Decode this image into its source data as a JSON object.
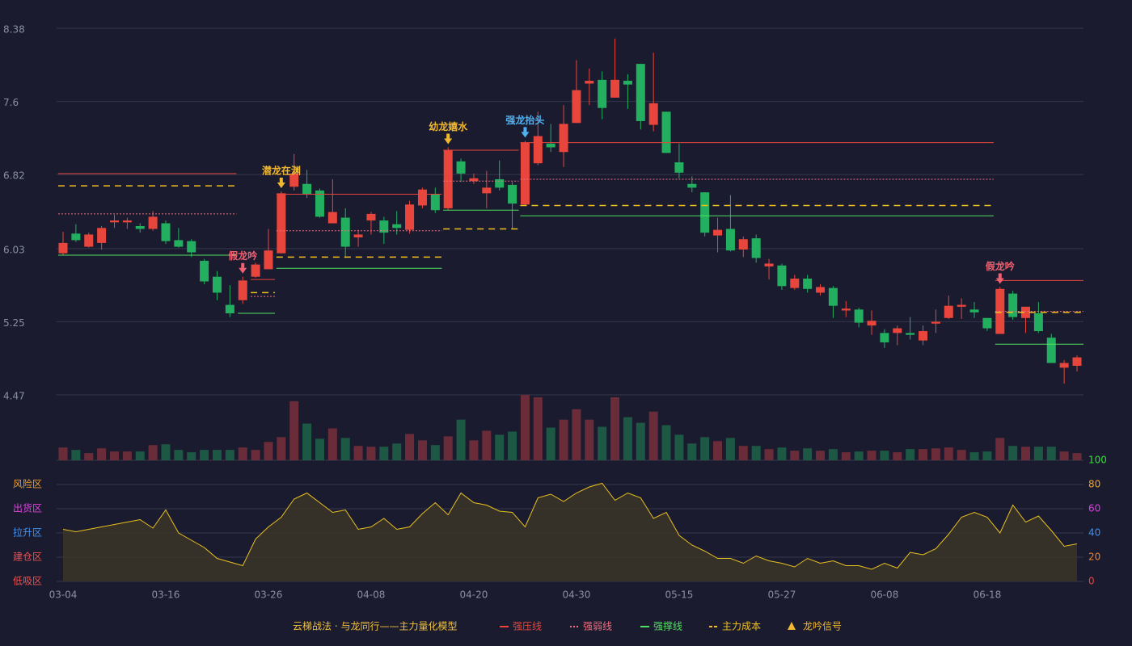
{
  "chart_data": [
    {
      "type": "candlestick",
      "categories": [
        "03-04",
        null,
        null,
        null,
        null,
        null,
        null,
        null,
        "03-16",
        null,
        null,
        null,
        null,
        null,
        null,
        null,
        "03-26",
        null,
        null,
        null,
        null,
        null,
        null,
        null,
        "04-08",
        null,
        null,
        null,
        null,
        null,
        null,
        null,
        "04-20",
        null,
        null,
        null,
        null,
        null,
        null,
        null,
        "04-30",
        null,
        null,
        null,
        null,
        null,
        null,
        null,
        "05-15",
        null,
        null,
        null,
        null,
        null,
        null,
        null,
        "05-27",
        null,
        null,
        null,
        null,
        null,
        null,
        null,
        "06-08",
        null,
        null,
        null,
        null,
        null,
        null,
        null,
        "06-18",
        null,
        null,
        null,
        null,
        null,
        null,
        null
      ],
      "open": [
        5.98,
        6.19,
        6.05,
        6.09,
        6.31,
        6.31,
        6.27,
        6.24,
        6.3,
        6.12,
        6.11,
        5.9,
        5.73,
        5.43,
        5.48,
        5.73,
        5.81,
        5.98,
        6.69,
        6.72,
        6.65,
        6.3,
        6.36,
        6.15,
        6.33,
        6.33,
        6.29,
        6.23,
        6.49,
        6.61,
        6.46,
        6.96,
        6.75,
        6.62,
        6.77,
        6.71,
        6.5,
        6.94,
        7.15,
        7.06,
        7.37,
        7.79,
        7.83,
        7.64,
        7.82,
        8.0,
        7.35,
        7.49,
        6.95,
        6.72,
        6.63,
        6.17,
        6.24,
        6.02,
        6.14,
        5.84,
        5.85,
        5.61,
        5.71,
        5.56,
        5.61,
        5.37,
        5.38,
        5.21,
        5.13,
        5.13,
        5.13,
        5.05,
        5.23,
        5.29,
        5.41,
        5.38,
        5.29,
        5.12,
        5.55,
        5.29,
        5.34,
        5.08,
        4.76,
        4.78
      ],
      "high": [
        6.21,
        6.29,
        6.2,
        6.27,
        6.39,
        6.36,
        6.3,
        6.43,
        6.33,
        6.25,
        6.13,
        5.92,
        5.79,
        5.64,
        5.73,
        5.88,
        6.24,
        6.64,
        7.04,
        6.87,
        6.67,
        6.77,
        6.46,
        6.23,
        6.42,
        6.37,
        6.43,
        6.54,
        6.68,
        6.68,
        7.11,
        6.99,
        6.83,
        6.86,
        6.97,
        6.74,
        7.18,
        7.49,
        7.36,
        7.56,
        8.04,
        7.95,
        7.92,
        8.27,
        7.89,
        8.0,
        8.12,
        7.49,
        7.15,
        6.8,
        6.63,
        6.36,
        6.6,
        6.16,
        6.18,
        5.92,
        5.87,
        5.75,
        5.75,
        5.65,
        5.63,
        5.47,
        5.4,
        5.37,
        5.17,
        5.21,
        5.3,
        5.21,
        5.38,
        5.53,
        5.5,
        5.46,
        5.29,
        5.62,
        5.58,
        5.41,
        5.46,
        5.12,
        4.84,
        4.89
      ],
      "low": [
        5.96,
        6.1,
        6.04,
        6.02,
        6.25,
        6.24,
        6.2,
        6.22,
        6.08,
        6.04,
        5.94,
        5.65,
        5.48,
        5.3,
        5.44,
        5.72,
        5.81,
        5.98,
        6.65,
        6.57,
        6.36,
        6.3,
        5.93,
        6.05,
        6.18,
        6.08,
        6.18,
        6.19,
        6.46,
        6.41,
        6.44,
        6.74,
        6.72,
        6.46,
        6.65,
        6.24,
        6.49,
        6.92,
        7.06,
        6.9,
        7.37,
        7.56,
        7.41,
        7.64,
        7.52,
        7.3,
        7.28,
        7.05,
        6.78,
        6.63,
        6.16,
        5.99,
        6.0,
        5.94,
        5.88,
        5.7,
        5.59,
        5.59,
        5.56,
        5.53,
        5.29,
        5.3,
        5.19,
        5.11,
        4.97,
        5.0,
        5.06,
        5.0,
        5.13,
        5.28,
        5.28,
        5.29,
        5.15,
        5.12,
        5.27,
        5.13,
        5.13,
        4.81,
        4.59,
        4.72
      ],
      "close": [
        6.09,
        6.12,
        6.18,
        6.25,
        6.33,
        6.33,
        6.24,
        6.37,
        6.11,
        6.05,
        5.99,
        5.68,
        5.56,
        5.34,
        5.69,
        5.86,
        6.01,
        6.62,
        6.83,
        6.61,
        6.37,
        6.42,
        6.05,
        6.18,
        6.4,
        6.2,
        6.25,
        6.5,
        6.66,
        6.44,
        7.08,
        6.83,
        6.78,
        6.68,
        6.68,
        6.51,
        7.16,
        7.23,
        7.11,
        7.36,
        7.72,
        7.82,
        7.53,
        7.83,
        7.78,
        7.39,
        7.58,
        7.05,
        6.84,
        6.68,
        6.2,
        6.23,
        6.01,
        6.13,
        5.93,
        5.87,
        5.63,
        5.71,
        5.6,
        5.62,
        5.42,
        5.39,
        5.24,
        5.26,
        5.03,
        5.18,
        5.11,
        5.15,
        5.25,
        5.42,
        5.43,
        5.35,
        5.18,
        5.6,
        5.3,
        5.41,
        5.15,
        4.81,
        4.81,
        4.87
      ],
      "up_color": "#e8463c",
      "down_color": "#22b060",
      "ylim": [
        4.47,
        8.38
      ],
      "yticks": [
        4.47,
        5.25,
        6.03,
        6.82,
        7.6,
        {
          "value": 8.38,
          "label": "8.38"
        }
      ],
      "grid": true,
      "legend_title": "云梯战法 · 与龙同行——主力量化模型",
      "levels": [
        {
          "name": "强压线",
          "color": "#e8463c",
          "style": "solid",
          "segments": [
            {
              "start": 0,
              "end": 13,
              "value": 6.83
            },
            {
              "start": 15,
              "end": 16,
              "value": 5.7
            },
            {
              "start": 17,
              "end": 29,
              "value": 6.61
            },
            {
              "start": 30,
              "end": 35,
              "value": 7.08
            },
            {
              "start": 36,
              "end": 72,
              "value": 7.16
            },
            {
              "start": 73,
              "end": 79,
              "value": 5.69
            }
          ]
        },
        {
          "name": "强弱线",
          "color": "#f07080",
          "style": "dotted",
          "segments": [
            {
              "start": 0,
              "end": 13,
              "value": 6.4
            },
            {
              "start": 15,
              "end": 16,
              "value": 5.52
            },
            {
              "start": 17,
              "end": 29,
              "value": 6.22
            },
            {
              "start": 30,
              "end": 35,
              "value": 6.75
            },
            {
              "start": 36,
              "end": 72,
              "value": 6.77
            },
            {
              "start": 73,
              "end": 79,
              "value": 5.36
            }
          ]
        },
        {
          "name": "强撑线",
          "color": "#50e060",
          "style": "solid",
          "segments": [
            {
              "start": 0,
              "end": 13,
              "value": 5.96
            },
            {
              "start": 14,
              "end": 16,
              "value": 5.34
            },
            {
              "start": 17,
              "end": 29,
              "value": 5.82
            },
            {
              "start": 30,
              "end": 35,
              "value": 6.44
            },
            {
              "start": 36,
              "end": 72,
              "value": 6.38
            },
            {
              "start": 73,
              "end": 79,
              "value": 5.01
            }
          ]
        },
        {
          "name": "主力成本",
          "color": "#f0c020",
          "style": "dashed",
          "segments": [
            {
              "start": 0,
              "end": 13,
              "value": 6.7
            },
            {
              "start": 15,
              "end": 16,
              "value": 5.56
            },
            {
              "start": 17,
              "end": 29,
              "value": 5.94
            },
            {
              "start": 30,
              "end": 35,
              "value": 6.24
            },
            {
              "start": 36,
              "end": 72,
              "value": 6.49
            },
            {
              "start": 73,
              "end": 79,
              "value": 5.35
            }
          ]
        }
      ],
      "signals": {
        "name": "龙吟信号",
        "color": "#f0b830",
        "points": [
          {
            "index": 14,
            "label": "假龙吟",
            "color": "#f06070"
          },
          {
            "index": 17,
            "label": "潜龙在渊",
            "color": "#f0b830"
          },
          {
            "index": 30,
            "label": "幼龙嬉水",
            "color": "#f0b830"
          },
          {
            "index": 36,
            "label": "强龙抬头",
            "color": "#50b0f0"
          },
          {
            "index": 73,
            "label": "假龙吟",
            "color": "#f06070"
          }
        ]
      }
    },
    {
      "type": "bar",
      "values": [
        16,
        13,
        9,
        15,
        11,
        11,
        11,
        19,
        20,
        13,
        10,
        13,
        13,
        13,
        16,
        13,
        23,
        29,
        74,
        46,
        27,
        40,
        28,
        18,
        17,
        17,
        21,
        33,
        25,
        19,
        30,
        51,
        25,
        37,
        32,
        36,
        82,
        79,
        41,
        51,
        64,
        51,
        42,
        79,
        54,
        47,
        61,
        44,
        32,
        21,
        29,
        24,
        28,
        18,
        18,
        14,
        16,
        12,
        15,
        12,
        14,
        10,
        11,
        12,
        12,
        10,
        14,
        14,
        15,
        16,
        13,
        10,
        11,
        28,
        18,
        17,
        17,
        17,
        11,
        9
      ],
      "up_color": "#6a2c38",
      "down_color": "#1d5844"
    },
    {
      "type": "area",
      "values": [
        43,
        41,
        43,
        45,
        47,
        49,
        51,
        44,
        59,
        40,
        34,
        28,
        19,
        16,
        13,
        35,
        45,
        53,
        68,
        73,
        65,
        57,
        59,
        43,
        45,
        52,
        43,
        45,
        56,
        65,
        55,
        73,
        65,
        63,
        58,
        57,
        45,
        69,
        72,
        66,
        73,
        78,
        81,
        67,
        73,
        69,
        52,
        57,
        38,
        30,
        25,
        19,
        19,
        15,
        21,
        17,
        15,
        12,
        19,
        15,
        17,
        13,
        13,
        10,
        15,
        11,
        24,
        22,
        27,
        39,
        53,
        57,
        53,
        40,
        63,
        49,
        54,
        42,
        29,
        31
      ],
      "color": "#e8c020",
      "fill": "#3a3428",
      "ylim": [
        0,
        100
      ],
      "yticks": [
        0,
        20,
        40,
        60,
        80,
        100
      ],
      "tick_colors": [
        "#f04040",
        "#f08030",
        "#4090f0",
        "#e040e0",
        "#f0a030",
        "#30e030"
      ],
      "zones": [
        {
          "value": 80,
          "label": "风险区",
          "color": "#f0a030"
        },
        {
          "value": 60,
          "label": "出货区",
          "color": "#e040e0"
        },
        {
          "value": 40,
          "label": "拉升区",
          "color": "#4090f0"
        },
        {
          "value": 20,
          "label": "建仓区",
          "color": "#f05050"
        },
        {
          "value": 0,
          "label": "低吸区",
          "color": "#f05050"
        }
      ]
    }
  ]
}
